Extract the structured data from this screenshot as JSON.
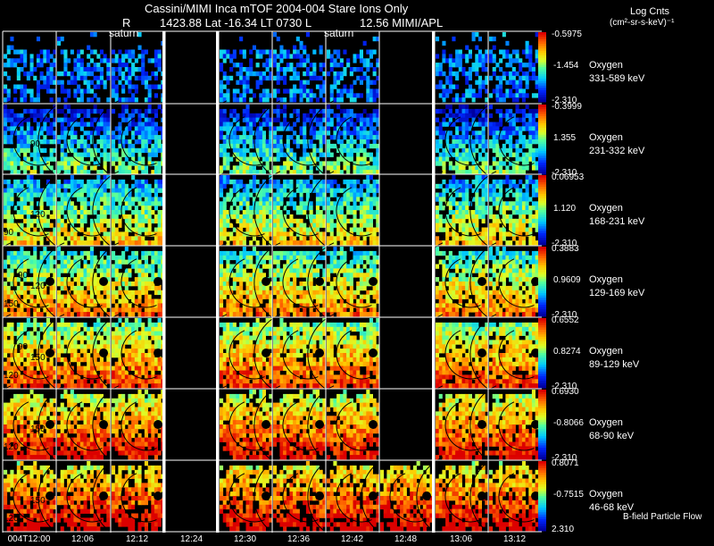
{
  "header": {
    "title": "Cassini/MIMI Inca mTOF  2004-004   Stare   Ions Only",
    "subtitle_r": "R",
    "subtitle_pos": "1423.88 Lat -16.34 LT 0730 L",
    "subtitle_l": "12.56  MIMI/APL",
    "units_line1": "Log Cnts",
    "units_line2": "(cm²-sr-s-keV)⁻¹"
  },
  "colors": {
    "background": "#000000",
    "grid_line": "#ffffff"
  },
  "chart_data": {
    "type": "heatmap",
    "description_labels": {
      "footer_note": "B-field Particle Flow",
      "marker": "saturn"
    },
    "columns": [
      "004T12:00",
      "12:06",
      "12:12",
      "12:24",
      "12:30",
      "12:36",
      "12:42",
      "12:48",
      "13:06",
      "13:12"
    ],
    "empty_columns": [
      3
    ],
    "partial_columns": {
      "7": [
        6
      ]
    },
    "saturn_labels": [
      {
        "column": 2,
        "text": "saturn"
      },
      {
        "column": 6,
        "text": "saturn"
      }
    ],
    "rows": [
      {
        "species": "Oxygen",
        "energy": "331-589 keV",
        "cmax": "-0.5975",
        "cmid": "-1.454",
        "cmin": "-2.310",
        "contours": []
      },
      {
        "species": "Oxygen",
        "energy": "231-332 keV",
        "cmax": "-0.3999",
        "cmid": "1.355",
        "cmin": "-2.310",
        "contours": [
          "90"
        ]
      },
      {
        "species": "Oxygen",
        "energy": "168-231 keV",
        "cmax": "0.06953",
        "cmid": "1.120",
        "cmin": "-2.310",
        "contours": [
          "120",
          "90"
        ]
      },
      {
        "species": "Oxygen",
        "energy": "129-169 keV",
        "cmax": "0.3883",
        "cmid": "0.9609",
        "cmin": "-2.310",
        "contours": [
          "120",
          "150",
          "90"
        ]
      },
      {
        "species": "Oxygen",
        "energy": "89-129 keV",
        "cmax": "0.6552",
        "cmid": "0.8274",
        "cmin": "-2.310",
        "contours": [
          "150",
          "120",
          "90"
        ]
      },
      {
        "species": "Oxygen",
        "energy": "68-90 keV",
        "cmax": "0.6930",
        "cmid": "-0.8066",
        "cmin": "-2.310",
        "contours": [
          "150",
          "120"
        ]
      },
      {
        "species": "Oxygen",
        "energy": "46-68 keV",
        "cmax": "0.8071",
        "cmid": "-0.7515",
        "cmin": "2.310",
        "contours": [
          "150",
          "120"
        ]
      }
    ],
    "row_intensity": [
      0.15,
      0.32,
      0.5,
      0.62,
      0.72,
      0.8,
      0.86
    ],
    "row_coverage": [
      0.55,
      0.72,
      0.8,
      0.82,
      0.85,
      0.85,
      0.78
    ]
  }
}
